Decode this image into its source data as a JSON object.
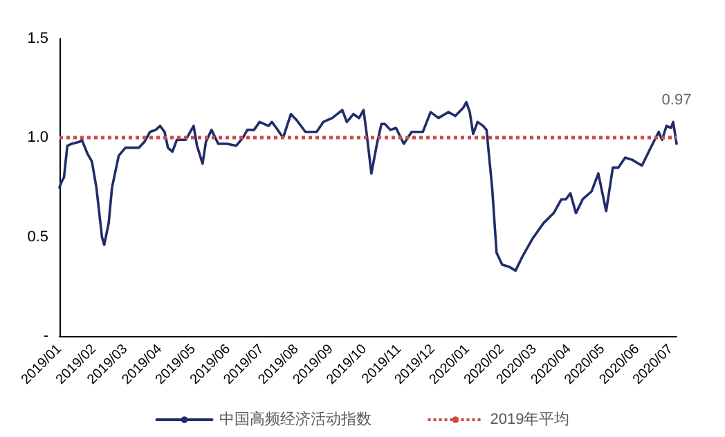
{
  "chart_data": {
    "type": "line",
    "x": [
      "2019-01-01",
      "2019-01-03",
      "2019-01-05",
      "2019-01-08",
      "2019-01-12",
      "2019-01-19",
      "2019-01-21",
      "2019-01-26",
      "2019-01-30",
      "2019-02-03",
      "2019-02-08",
      "2019-02-10",
      "2019-02-14",
      "2019-02-17",
      "2019-02-23",
      "2019-03-01",
      "2019-03-07",
      "2019-03-13",
      "2019-03-18",
      "2019-03-23",
      "2019-03-28",
      "2019-04-01",
      "2019-04-05",
      "2019-04-08",
      "2019-04-12",
      "2019-04-16",
      "2019-04-24",
      "2019-05-01",
      "2019-05-04",
      "2019-05-09",
      "2019-05-12",
      "2019-05-17",
      "2019-05-23",
      "2019-05-31",
      "2019-06-08",
      "2019-06-14",
      "2019-06-18",
      "2019-06-24",
      "2019-06-29",
      "2019-07-07",
      "2019-07-10",
      "2019-07-14",
      "2019-07-20",
      "2019-07-27",
      "2019-08-01",
      "2019-08-09",
      "2019-08-19",
      "2019-08-25",
      "2019-09-02",
      "2019-09-11",
      "2019-09-15",
      "2019-09-21",
      "2019-09-26",
      "2019-09-30",
      "2019-10-03",
      "2019-10-07",
      "2019-10-12",
      "2019-10-16",
      "2019-10-19",
      "2019-10-24",
      "2019-10-29",
      "2019-11-05",
      "2019-11-12",
      "2019-11-22",
      "2019-11-29",
      "2019-12-06",
      "2019-12-15",
      "2019-12-21",
      "2019-12-28",
      "2019-12-31",
      "2020-01-03",
      "2020-01-06",
      "2020-01-10",
      "2020-01-15",
      "2020-01-18",
      "2020-01-23",
      "2020-01-27",
      "2020-02-01",
      "2020-02-07",
      "2020-02-13",
      "2020-02-19",
      "2020-02-28",
      "2020-03-09",
      "2020-03-18",
      "2020-03-25",
      "2020-03-29",
      "2020-04-02",
      "2020-04-07",
      "2020-04-13",
      "2020-04-21",
      "2020-04-27",
      "2020-05-04",
      "2020-05-10",
      "2020-05-15",
      "2020-05-21",
      "2020-05-27",
      "2020-06-05",
      "2020-06-12",
      "2020-06-20",
      "2020-06-23",
      "2020-06-27",
      "2020-07-01",
      "2020-07-03",
      "2020-07-06"
    ],
    "series": [
      {
        "name": "中国高频经济活动指数",
        "color": "#1f2d6b",
        "values": [
          0.75,
          0.78,
          0.8,
          0.96,
          0.97,
          0.98,
          0.99,
          0.92,
          0.88,
          0.75,
          0.5,
          0.46,
          0.57,
          0.75,
          0.91,
          0.95,
          0.95,
          0.95,
          0.98,
          1.03,
          1.04,
          1.06,
          1.03,
          0.95,
          0.93,
          0.99,
          0.99,
          1.06,
          0.96,
          0.87,
          0.98,
          1.04,
          0.97,
          0.97,
          0.96,
          1.0,
          1.04,
          1.04,
          1.08,
          1.06,
          1.08,
          1.05,
          1.0,
          1.12,
          1.09,
          1.03,
          1.03,
          1.08,
          1.1,
          1.14,
          1.08,
          1.12,
          1.1,
          1.14,
          1.01,
          0.82,
          0.97,
          1.07,
          1.07,
          1.04,
          1.05,
          0.97,
          1.03,
          1.03,
          1.13,
          1.1,
          1.13,
          1.11,
          1.15,
          1.18,
          1.13,
          1.02,
          1.08,
          1.06,
          1.04,
          0.75,
          0.42,
          0.36,
          0.35,
          0.33,
          0.4,
          0.49,
          0.57,
          0.62,
          0.69,
          0.69,
          0.72,
          0.62,
          0.69,
          0.73,
          0.82,
          0.63,
          0.85,
          0.85,
          0.9,
          0.89,
          0.86,
          0.94,
          1.03,
          0.99,
          1.06,
          1.05,
          1.08,
          0.97
        ]
      }
    ],
    "xlim": [
      "2019-01-01",
      "2020-07-06"
    ],
    "xticks": [
      {
        "value": "2019-01-01",
        "label": "2019/01"
      },
      {
        "value": "2019-02-01",
        "label": "2019/02"
      },
      {
        "value": "2019-03-01",
        "label": "2019/03"
      },
      {
        "value": "2019-04-01",
        "label": "2019/04"
      },
      {
        "value": "2019-05-01",
        "label": "2019/05"
      },
      {
        "value": "2019-06-01",
        "label": "2019/06"
      },
      {
        "value": "2019-07-01",
        "label": "2019/07"
      },
      {
        "value": "2019-08-01",
        "label": "2019/08"
      },
      {
        "value": "2019-09-01",
        "label": "2019/09"
      },
      {
        "value": "2019-10-01",
        "label": "2019/10"
      },
      {
        "value": "2019-11-01",
        "label": "2019/11"
      },
      {
        "value": "2019-12-01",
        "label": "2019/12"
      },
      {
        "value": "2020-01-01",
        "label": "2020/01"
      },
      {
        "value": "2020-02-01",
        "label": "2020/02"
      },
      {
        "value": "2020-03-01",
        "label": "2020/03"
      },
      {
        "value": "2020-04-01",
        "label": "2020/04"
      },
      {
        "value": "2020-05-01",
        "label": "2020/05"
      },
      {
        "value": "2020-06-01",
        "label": "2020/06"
      },
      {
        "value": "2020-07-01",
        "label": "2020/07"
      }
    ],
    "ylim": [
      0,
      1.5
    ],
    "yticks": [
      {
        "value": 0,
        "label": "-"
      },
      0.5,
      {
        "value": 1,
        "label": "1.0"
      },
      1.5
    ],
    "ref_lines": [
      {
        "axis": "y",
        "value": 1,
        "label": "2019年平均",
        "color": "#d04a4a",
        "line_style": "dotted"
      }
    ],
    "annotations": [
      {
        "text": "0.97",
        "x": "2020-07-06",
        "y": 0.97
      }
    ],
    "legend": "bottom",
    "grid": false,
    "marker": "none",
    "line_style": "solid"
  }
}
